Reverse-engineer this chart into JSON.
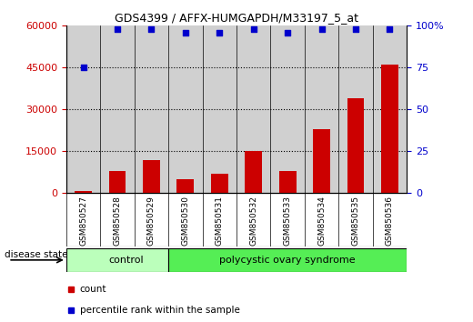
{
  "title": "GDS4399 / AFFX-HUMGAPDH/M33197_5_at",
  "samples": [
    "GSM850527",
    "GSM850528",
    "GSM850529",
    "GSM850530",
    "GSM850531",
    "GSM850532",
    "GSM850533",
    "GSM850534",
    "GSM850535",
    "GSM850536"
  ],
  "counts": [
    700,
    8000,
    12000,
    5000,
    7000,
    15000,
    8000,
    23000,
    34000,
    46000
  ],
  "percentiles": [
    75,
    98,
    98,
    96,
    96,
    98,
    96,
    98,
    98,
    98
  ],
  "ylim_left": [
    0,
    60000
  ],
  "ylim_right": [
    0,
    100
  ],
  "yticks_left": [
    0,
    15000,
    30000,
    45000,
    60000
  ],
  "yticks_right": [
    0,
    25,
    50,
    75,
    100
  ],
  "yticklabels_right": [
    "0",
    "25",
    "50",
    "75",
    "100%"
  ],
  "bar_color": "#cc0000",
  "scatter_color": "#0000cc",
  "control_label": "control",
  "pcos_label": "polycystic ovary syndrome",
  "disease_state_label": "disease state",
  "legend_count": "count",
  "legend_percentile": "percentile rank within the sample",
  "control_color": "#bbffbb",
  "pcos_color": "#55ee55",
  "col_bg_color": "#d0d0d0",
  "n_control": 3,
  "n_pcos": 7
}
